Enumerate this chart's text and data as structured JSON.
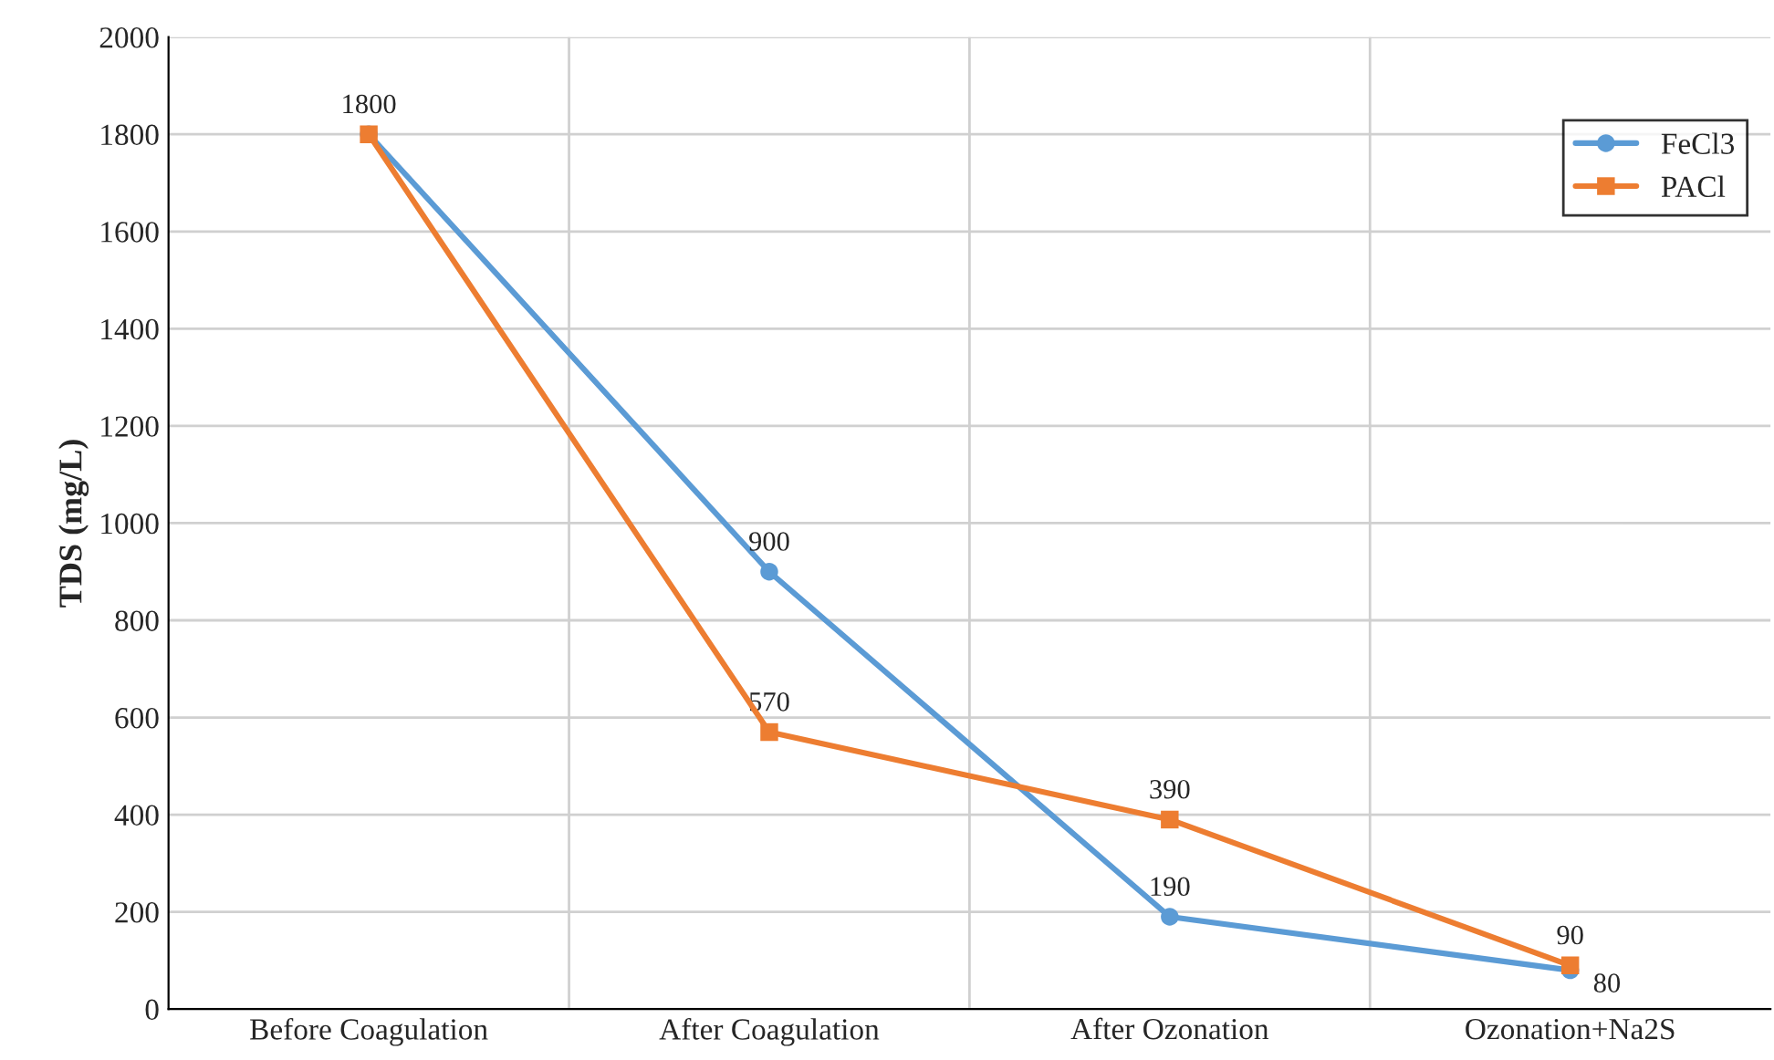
{
  "chart_data": {
    "type": "line",
    "ylabel": "TDS (mg/L)",
    "categories": [
      "Before Coagulation",
      "After Coagulation",
      "After Ozonation",
      "Ozonation+Na2S"
    ],
    "series": [
      {
        "name": "FeCl3",
        "color": "#5b9bd5",
        "marker": "circle",
        "values": [
          1800,
          900,
          190,
          80
        ],
        "value_labels": [
          null,
          "900",
          "190",
          "80"
        ]
      },
      {
        "name": "PACl",
        "color": "#ed7d31",
        "marker": "square",
        "values": [
          1800,
          570,
          390,
          90
        ],
        "value_labels": [
          "1800",
          "570",
          "390",
          "90"
        ]
      }
    ],
    "ylim": [
      0,
      2000
    ],
    "yticks": [
      0,
      200,
      400,
      600,
      800,
      1000,
      1200,
      1400,
      1600,
      1800,
      2000
    ],
    "grid": true,
    "legend": "top right"
  }
}
